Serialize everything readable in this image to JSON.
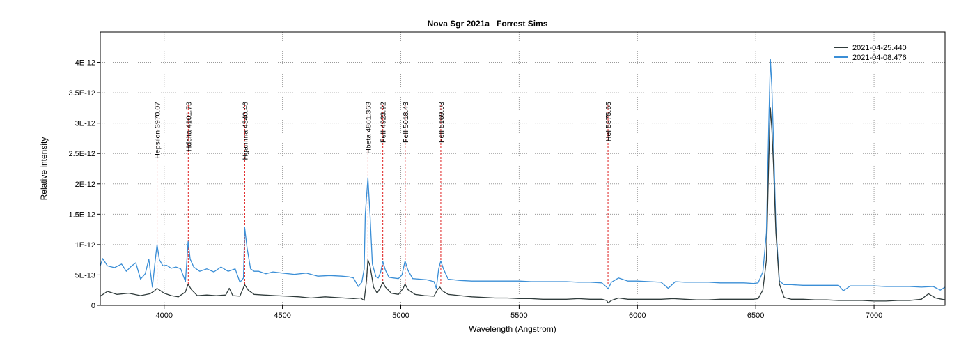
{
  "chart_data": {
    "type": "line",
    "title": "Nova Sgr 2021a   Forrest Sims",
    "xlabel": "Wavelength (Angstrom)",
    "ylabel": "Relative intensity",
    "xlim": [
      3730,
      7300
    ],
    "ylim": [
      0,
      4.5e-12
    ],
    "xticks": [
      4000,
      4500,
      5000,
      5500,
      6000,
      6500,
      7000
    ],
    "xtick_labels": [
      "4000",
      "4500",
      "5000",
      "5500",
      "6000",
      "6500",
      "7000"
    ],
    "yticks": [
      0,
      5e-13,
      1e-12,
      1.5e-12,
      2e-12,
      2.5e-12,
      3e-12,
      3.5e-12,
      4e-12
    ],
    "ytick_labels": [
      "0",
      "5E-13",
      "1E-12",
      "1.5E-12",
      "2E-12",
      "2.5E-12",
      "3E-12",
      "3.5E-12",
      "4E-12"
    ],
    "grid": true,
    "legend_position": "top-right",
    "series": [
      {
        "name": "2021-04-25.440",
        "color": "#2f3b3b",
        "x": [
          3730,
          3760,
          3800,
          3850,
          3900,
          3940,
          3960,
          3970,
          3985,
          4000,
          4030,
          4060,
          4090,
          4101,
          4115,
          4140,
          4180,
          4220,
          4260,
          4275,
          4290,
          4320,
          4340,
          4355,
          4380,
          4420,
          4470,
          4520,
          4570,
          4620,
          4680,
          4720,
          4760,
          4800,
          4830,
          4845,
          4855,
          4861,
          4870,
          4885,
          4900,
          4915,
          4924,
          4935,
          4960,
          4990,
          5010,
          5018,
          5030,
          5060,
          5100,
          5140,
          5155,
          5165,
          5175,
          5200,
          5250,
          5300,
          5350,
          5400,
          5450,
          5500,
          5550,
          5600,
          5650,
          5700,
          5750,
          5800,
          5850,
          5870,
          5876,
          5890,
          5920,
          5960,
          6000,
          6050,
          6100,
          6150,
          6200,
          6250,
          6300,
          6350,
          6400,
          6450,
          6490,
          6510,
          6530,
          6545,
          6555,
          6562,
          6568,
          6575,
          6585,
          6600,
          6620,
          6650,
          6700,
          6750,
          6800,
          6850,
          6900,
          6950,
          7000,
          7050,
          7100,
          7150,
          7200,
          7230,
          7260,
          7300
        ],
        "y": [
          1.5e-13,
          2.3e-13,
          1.8e-13,
          2e-13,
          1.6e-13,
          1.9e-13,
          2.4e-13,
          2.8e-13,
          2.4e-13,
          2e-13,
          1.6e-13,
          1.4e-13,
          2.2e-13,
          3.5e-13,
          2.6e-13,
          1.6e-13,
          1.7e-13,
          1.6e-13,
          1.7e-13,
          2.8e-13,
          1.6e-13,
          1.5e-13,
          3.4e-13,
          2.5e-13,
          1.8e-13,
          1.7e-13,
          1.6e-13,
          1.5e-13,
          1.4e-13,
          1.2e-13,
          1.4e-13,
          1.3e-13,
          1.2e-13,
          1.1e-13,
          1.2e-13,
          8e-14,
          4e-13,
          7.5e-13,
          6.5e-13,
          3e-13,
          2e-13,
          3e-13,
          3.8e-13,
          3e-13,
          2e-13,
          1.8e-13,
          2.8e-13,
          3.5e-13,
          2.6e-13,
          1.8e-13,
          1.6e-13,
          1.5e-13,
          2.6e-13,
          3e-13,
          2.4e-13,
          1.8e-13,
          1.6e-13,
          1.4e-13,
          1.3e-13,
          1.2e-13,
          1.2e-13,
          1.1e-13,
          1.1e-13,
          1e-13,
          1e-13,
          1e-13,
          1.1e-13,
          1e-13,
          1e-13,
          8e-14,
          4e-14,
          8e-14,
          1.2e-13,
          1e-13,
          1e-13,
          1e-13,
          1e-13,
          1.1e-13,
          1e-13,
          9e-14,
          9e-14,
          1e-13,
          1e-13,
          1e-13,
          1e-13,
          1.1e-13,
          2.5e-13,
          7.5e-13,
          2.4e-12,
          3.25e-12,
          2.9e-12,
          2.3e-12,
          1.2e-12,
          3.5e-13,
          1.3e-13,
          1e-13,
          1e-13,
          9e-14,
          9e-14,
          8e-14,
          8e-14,
          8e-14,
          7e-14,
          7e-14,
          8e-14,
          8e-14,
          1e-13,
          1.9e-13,
          1.2e-13,
          9e-14
        ]
      },
      {
        "name": "2021-04-08.476",
        "color": "#3a8ed6",
        "x": [
          3730,
          3740,
          3760,
          3790,
          3820,
          3840,
          3860,
          3880,
          3900,
          3920,
          3935,
          3950,
          3962,
          3970,
          3980,
          3995,
          4010,
          4030,
          4050,
          4070,
          4090,
          4101,
          4110,
          4125,
          4150,
          4180,
          4210,
          4240,
          4270,
          4300,
          4320,
          4335,
          4340,
          4350,
          4365,
          4380,
          4400,
          4430,
          4460,
          4500,
          4550,
          4600,
          4650,
          4700,
          4750,
          4780,
          4800,
          4820,
          4835,
          4845,
          4850,
          4861,
          4870,
          4880,
          4895,
          4905,
          4915,
          4924,
          4935,
          4950,
          4970,
          4990,
          5005,
          5018,
          5030,
          5050,
          5080,
          5110,
          5140,
          5150,
          5160,
          5169,
          5180,
          5200,
          5250,
          5300,
          5350,
          5400,
          5450,
          5500,
          5550,
          5600,
          5650,
          5700,
          5750,
          5800,
          5850,
          5870,
          5876,
          5890,
          5920,
          5960,
          6000,
          6050,
          6100,
          6130,
          6160,
          6200,
          6250,
          6300,
          6350,
          6400,
          6450,
          6490,
          6510,
          6530,
          6545,
          6555,
          6562,
          6568,
          6575,
          6585,
          6600,
          6620,
          6650,
          6700,
          6750,
          6800,
          6850,
          6870,
          6900,
          6950,
          7000,
          7050,
          7100,
          7150,
          7200,
          7250,
          7280,
          7300
        ],
        "y": [
          6.5e-13,
          7.7e-13,
          6.5e-13,
          6.2e-13,
          6.8e-13,
          5.6e-13,
          6.4e-13,
          7e-13,
          4.3e-13,
          5.2e-13,
          7.6e-13,
          3e-13,
          7.3e-13,
          1e-12,
          7.5e-13,
          6.5e-13,
          6.6e-13,
          6.1e-13,
          6.3e-13,
          6e-13,
          3.9e-13,
          1.05e-12,
          7.6e-13,
          6.3e-13,
          5.6e-13,
          6e-13,
          5.5e-13,
          6.3e-13,
          5.6e-13,
          6e-13,
          3.8e-13,
          4.5e-13,
          1.28e-12,
          9.5e-13,
          6e-13,
          5.6e-13,
          5.6e-13,
          5.2e-13,
          5.5e-13,
          5.3e-13,
          5.1e-13,
          5.3e-13,
          4.8e-13,
          4.9e-13,
          4.8e-13,
          4.7e-13,
          4.5e-13,
          3.1e-13,
          3.8e-13,
          6e-13,
          1.5e-12,
          2.1e-12,
          1.5e-12,
          6.8e-13,
          4.7e-13,
          4.5e-13,
          5.5e-13,
          7.2e-13,
          5.8e-13,
          4.6e-13,
          4.5e-13,
          4.4e-13,
          5e-13,
          7.3e-13,
          5.8e-13,
          4.4e-13,
          4.3e-13,
          4.2e-13,
          3.9e-13,
          2.8e-13,
          6e-13,
          7.3e-13,
          6e-13,
          4.3e-13,
          4.1e-13,
          4e-13,
          4e-13,
          4e-13,
          4e-13,
          4e-13,
          3.9e-13,
          3.9e-13,
          3.9e-13,
          3.9e-13,
          3.8e-13,
          3.8e-13,
          3.7e-13,
          3e-13,
          2.7e-13,
          3.8e-13,
          4.5e-13,
          4e-13,
          4e-13,
          3.9e-13,
          3.8e-13,
          2.8e-13,
          3.9e-13,
          3.8e-13,
          3.8e-13,
          3.8e-13,
          3.7e-13,
          3.7e-13,
          3.7e-13,
          3.6e-13,
          3.7e-13,
          5.5e-13,
          1.2e-12,
          3e-12,
          4.05e-12,
          3.6e-12,
          2.7e-12,
          1.3e-12,
          4e-13,
          3.4e-13,
          3.4e-13,
          3.3e-13,
          3.3e-13,
          3.3e-13,
          3.3e-13,
          2.4e-13,
          3.2e-13,
          3.2e-13,
          3.2e-13,
          3.1e-13,
          3.1e-13,
          3.1e-13,
          3e-13,
          3.1e-13,
          2.5e-13,
          3e-13
        ]
      }
    ],
    "annotations": [
      {
        "label": "Hepsilon 3970.07",
        "x": 3970.07
      },
      {
        "label": "Hdelta 4101.73",
        "x": 4101.73
      },
      {
        "label": "Hgamma 4340.46",
        "x": 4340.46
      },
      {
        "label": "Hbeta 4861.363",
        "x": 4861.363
      },
      {
        "label": "FeII 4923.92",
        "x": 4923.92
      },
      {
        "label": "FeII 5018.43",
        "x": 5018.43
      },
      {
        "label": "FeII 5169.03",
        "x": 5169.03
      },
      {
        "label": "HeI 5875.65",
        "x": 5875.65
      }
    ],
    "annotation_color": "#e02020"
  }
}
